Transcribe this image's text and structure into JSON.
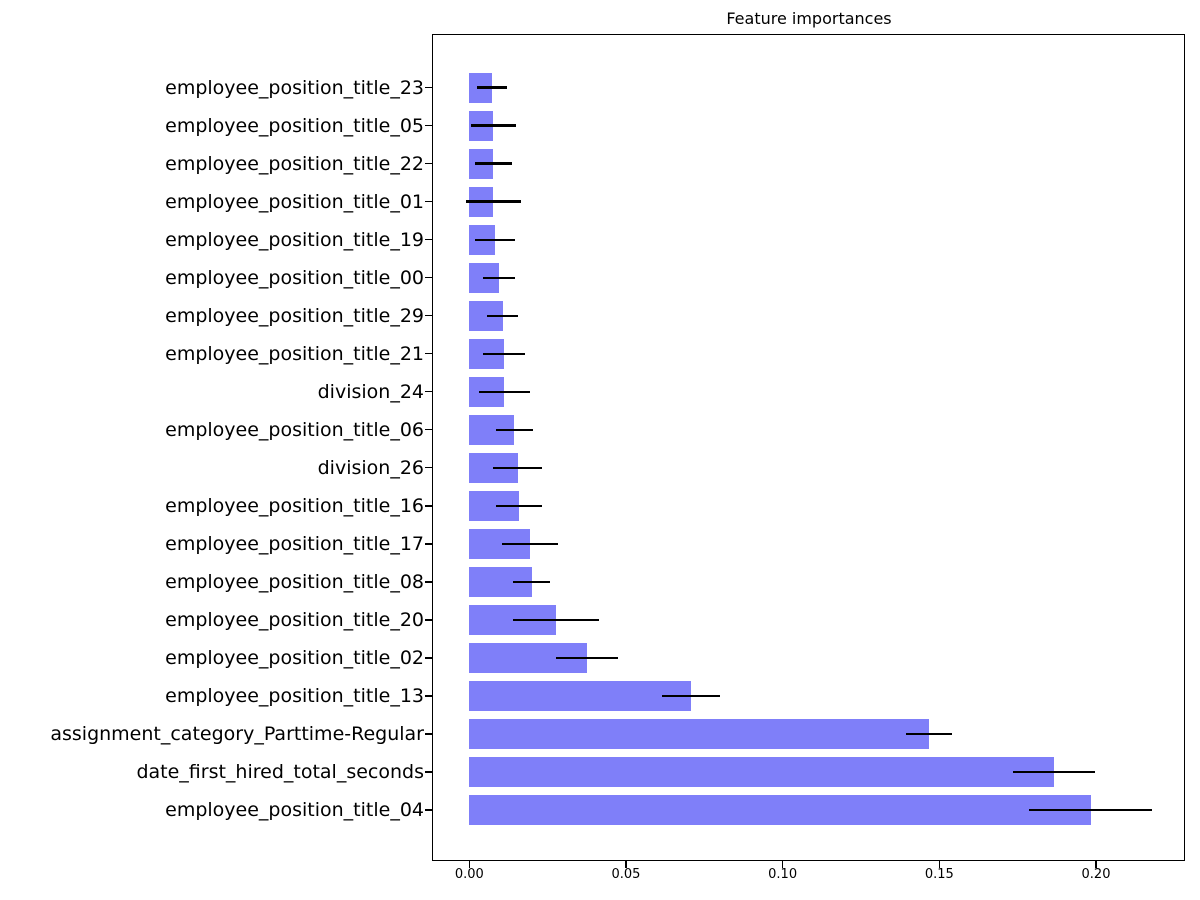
{
  "chart_data": {
    "type": "bar",
    "orientation": "horizontal",
    "title": "Feature importances",
    "categories": [
      "employee_position_title_23",
      "employee_position_title_05",
      "employee_position_title_22",
      "employee_position_title_01",
      "employee_position_title_19",
      "employee_position_title_00",
      "employee_position_title_29",
      "employee_position_title_21",
      "division_24",
      "employee_position_title_06",
      "division_26",
      "employee_position_title_16",
      "employee_position_title_17",
      "employee_position_title_08",
      "employee_position_title_20",
      "employee_position_title_02",
      "employee_position_title_13",
      "assignment_category_Parttime-Regular",
      "date_first_hired_total_seconds",
      "employee_position_title_04"
    ],
    "values": [
      0.0072,
      0.0077,
      0.0077,
      0.0077,
      0.0082,
      0.0096,
      0.0107,
      0.0112,
      0.0112,
      0.0144,
      0.0154,
      0.0158,
      0.0194,
      0.0199,
      0.0276,
      0.0376,
      0.0708,
      0.1467,
      0.1866,
      0.1983
    ],
    "errors": [
      0.0048,
      0.0071,
      0.006,
      0.0088,
      0.0065,
      0.0051,
      0.0049,
      0.0067,
      0.0082,
      0.006,
      0.0077,
      0.0073,
      0.009,
      0.0059,
      0.0138,
      0.0098,
      0.0092,
      0.0073,
      0.013,
      0.0197
    ],
    "xticks": {
      "labels": [
        "0.00",
        "0.05",
        "0.10",
        "0.15",
        "0.20"
      ],
      "values": [
        0.0,
        0.05,
        0.1,
        0.15,
        0.2
      ]
    },
    "xlim": [
      -0.0119,
      0.2287
    ],
    "ylabel": "",
    "xlabel": "",
    "grid": false,
    "legend": null,
    "bar_color": "#7f7ff9",
    "error_color": "#000000",
    "order_note": "listed top to bottom as displayed; values increase toward bottom"
  }
}
